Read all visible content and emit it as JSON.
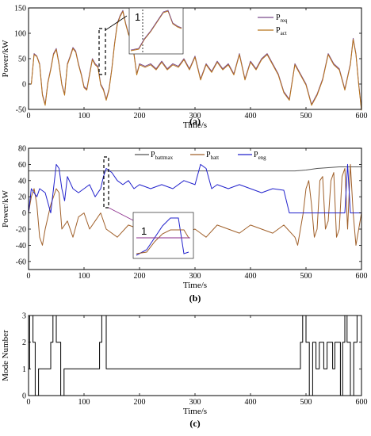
{
  "chart_data": [
    {
      "panel": "(a)",
      "type": "line",
      "xlabel": "Time/s",
      "ylabel": "Power/kW",
      "xlim": [
        0,
        600
      ],
      "ylim": [
        -50,
        150
      ],
      "xticks": [
        0,
        100,
        200,
        300,
        400,
        500,
        600
      ],
      "yticks": [
        -50,
        0,
        50,
        100,
        150
      ],
      "legend_position": "top-right",
      "series": [
        {
          "name": "P",
          "sub": "req",
          "color": "#7a4a8c",
          "x": [
            0,
            5,
            10,
            15,
            20,
            25,
            30,
            35,
            40,
            45,
            50,
            55,
            60,
            65,
            70,
            75,
            80,
            85,
            90,
            95,
            100,
            105,
            110,
            115,
            120,
            125,
            130,
            135,
            140,
            145,
            150,
            155,
            160,
            165,
            170,
            175,
            180,
            185,
            190,
            195,
            200,
            210,
            220,
            230,
            240,
            250,
            260,
            270,
            280,
            290,
            300,
            310,
            320,
            330,
            340,
            350,
            360,
            370,
            380,
            390,
            400,
            410,
            420,
            430,
            440,
            450,
            460,
            470,
            480,
            490,
            500,
            510,
            520,
            530,
            540,
            550,
            560,
            570,
            580,
            585,
            590,
            595,
            600
          ],
          "y": [
            0,
            0,
            60,
            55,
            40,
            -20,
            -40,
            5,
            30,
            60,
            70,
            40,
            0,
            -20,
            40,
            55,
            72,
            65,
            40,
            20,
            -5,
            -10,
            20,
            50,
            40,
            35,
            0,
            -10,
            -30,
            -10,
            30,
            80,
            120,
            135,
            145,
            120,
            100,
            90,
            60,
            20,
            40,
            35,
            40,
            30,
            45,
            30,
            40,
            35,
            50,
            30,
            55,
            10,
            40,
            25,
            45,
            30,
            40,
            20,
            60,
            10,
            45,
            30,
            50,
            60,
            40,
            20,
            -15,
            -30,
            40,
            20,
            0,
            -40,
            -20,
            10,
            60,
            40,
            30,
            -10,
            40,
            90,
            60,
            0,
            -50
          ]
        },
        {
          "name": "P",
          "sub": "act",
          "color": "#b8741a",
          "x": [
            0,
            5,
            10,
            15,
            20,
            25,
            30,
            35,
            40,
            45,
            50,
            55,
            60,
            65,
            70,
            75,
            80,
            85,
            90,
            95,
            100,
            105,
            110,
            115,
            120,
            125,
            130,
            135,
            140,
            145,
            150,
            155,
            160,
            165,
            170,
            175,
            180,
            185,
            190,
            195,
            200,
            210,
            220,
            230,
            240,
            250,
            260,
            270,
            280,
            290,
            300,
            310,
            320,
            330,
            340,
            350,
            360,
            370,
            380,
            390,
            400,
            410,
            420,
            430,
            440,
            450,
            460,
            470,
            480,
            490,
            500,
            510,
            520,
            530,
            540,
            550,
            560,
            570,
            580,
            585,
            590,
            595,
            600
          ],
          "y": [
            0,
            0,
            58,
            54,
            38,
            -22,
            -42,
            3,
            28,
            58,
            68,
            38,
            -2,
            -22,
            38,
            53,
            70,
            63,
            38,
            18,
            -7,
            -12,
            18,
            48,
            38,
            33,
            -2,
            -12,
            -32,
            -12,
            28,
            78,
            118,
            133,
            143,
            118,
            98,
            88,
            58,
            18,
            38,
            33,
            38,
            28,
            43,
            28,
            38,
            33,
            48,
            28,
            53,
            8,
            38,
            23,
            43,
            28,
            38,
            18,
            58,
            8,
            43,
            28,
            48,
            58,
            38,
            18,
            -17,
            -32,
            38,
            18,
            -2,
            -42,
            -22,
            8,
            58,
            38,
            28,
            -12,
            38,
            88,
            58,
            -2,
            -52
          ]
        }
      ],
      "annotation": "1"
    },
    {
      "panel": "(b)",
      "type": "line",
      "xlabel": "Time/s",
      "ylabel": "Power/kW",
      "xlim": [
        0,
        600
      ],
      "ylim": [
        -70,
        80
      ],
      "xticks": [
        0,
        100,
        200,
        300,
        400,
        500,
        600
      ],
      "yticks": [
        -60,
        -40,
        -20,
        0,
        20,
        40,
        60,
        80
      ],
      "legend_position": "top",
      "series": [
        {
          "name": "P",
          "sub": "battmax",
          "color": "#555555",
          "x": [
            0,
            100,
            200,
            300,
            400,
            480,
            500,
            520,
            540,
            560,
            580,
            600
          ],
          "y": [
            52,
            52,
            52,
            52,
            52,
            52,
            53,
            55,
            56,
            57,
            57,
            57
          ]
        },
        {
          "name": "P",
          "sub": "batt",
          "color": "#a0602a",
          "x": [
            0,
            5,
            10,
            15,
            20,
            25,
            30,
            40,
            50,
            55,
            60,
            70,
            80,
            90,
            100,
            110,
            120,
            130,
            140,
            160,
            180,
            200,
            220,
            240,
            260,
            280,
            300,
            320,
            340,
            360,
            380,
            400,
            420,
            440,
            460,
            480,
            485,
            490,
            495,
            500,
            505,
            510,
            515,
            520,
            525,
            530,
            535,
            540,
            545,
            550,
            555,
            560,
            565,
            570,
            575,
            580,
            585,
            590,
            595,
            600
          ],
          "y": [
            0,
            20,
            30,
            10,
            -30,
            -40,
            -20,
            10,
            30,
            25,
            -20,
            -10,
            -30,
            -5,
            0,
            -20,
            -10,
            0,
            -20,
            -30,
            -15,
            -20,
            -25,
            -30,
            -15,
            -25,
            -20,
            -30,
            -15,
            -20,
            -25,
            -15,
            -20,
            -25,
            -15,
            -30,
            -40,
            -20,
            0,
            30,
            40,
            10,
            -30,
            -20,
            40,
            45,
            -20,
            -10,
            40,
            50,
            -30,
            -20,
            45,
            55,
            -20,
            60,
            0,
            -40,
            -20,
            0
          ]
        },
        {
          "name": "P",
          "sub": "eng",
          "color": "#2222cc",
          "x": [
            0,
            5,
            10,
            15,
            20,
            30,
            40,
            50,
            55,
            60,
            65,
            70,
            80,
            90,
            100,
            110,
            120,
            130,
            135,
            140,
            150,
            160,
            170,
            180,
            190,
            200,
            220,
            240,
            260,
            280,
            300,
            310,
            320,
            330,
            340,
            360,
            380,
            400,
            420,
            440,
            460,
            470,
            480,
            490,
            500,
            520,
            540,
            560,
            570,
            575,
            580,
            585,
            590,
            600
          ],
          "y": [
            0,
            30,
            25,
            20,
            30,
            25,
            0,
            60,
            55,
            30,
            15,
            45,
            30,
            25,
            30,
            35,
            20,
            30,
            45,
            55,
            50,
            40,
            35,
            40,
            30,
            35,
            30,
            35,
            30,
            40,
            35,
            60,
            55,
            30,
            35,
            30,
            35,
            30,
            25,
            30,
            28,
            0,
            0,
            0,
            0,
            0,
            0,
            0,
            0,
            60,
            0,
            0,
            0,
            0
          ]
        }
      ],
      "annotation": "1"
    },
    {
      "panel": "(c)",
      "type": "line",
      "xlabel": "Time/s",
      "ylabel": "Mode Number",
      "xlim": [
        0,
        600
      ],
      "ylim": [
        0,
        3
      ],
      "xticks": [
        0,
        100,
        200,
        300,
        400,
        500,
        600
      ],
      "yticks": [
        0,
        1,
        2,
        3
      ],
      "series": [
        {
          "name": "",
          "color": "#000000",
          "x": [
            0,
            2,
            2,
            8,
            8,
            12,
            12,
            18,
            18,
            40,
            40,
            44,
            44,
            50,
            50,
            58,
            58,
            64,
            64,
            128,
            128,
            132,
            132,
            140,
            140,
            490,
            490,
            494,
            494,
            500,
            500,
            506,
            506,
            512,
            512,
            518,
            518,
            524,
            524,
            532,
            532,
            538,
            538,
            548,
            548,
            552,
            552,
            562,
            562,
            566,
            566,
            570,
            570,
            574,
            574,
            580,
            580,
            586,
            586,
            592,
            592,
            600
          ],
          "y": [
            1,
            1,
            3,
            3,
            2,
            2,
            0,
            0,
            1,
            1,
            2,
            2,
            3,
            3,
            2,
            2,
            0,
            0,
            1,
            1,
            2,
            2,
            3,
            3,
            1,
            1,
            2,
            2,
            3,
            3,
            2,
            2,
            0,
            0,
            2,
            2,
            1,
            1,
            2,
            2,
            1,
            1,
            2,
            2,
            1,
            1,
            2,
            2,
            0,
            0,
            2,
            2,
            3,
            3,
            2,
            2,
            0,
            0,
            2,
            2,
            3,
            3
          ]
        }
      ]
    }
  ]
}
